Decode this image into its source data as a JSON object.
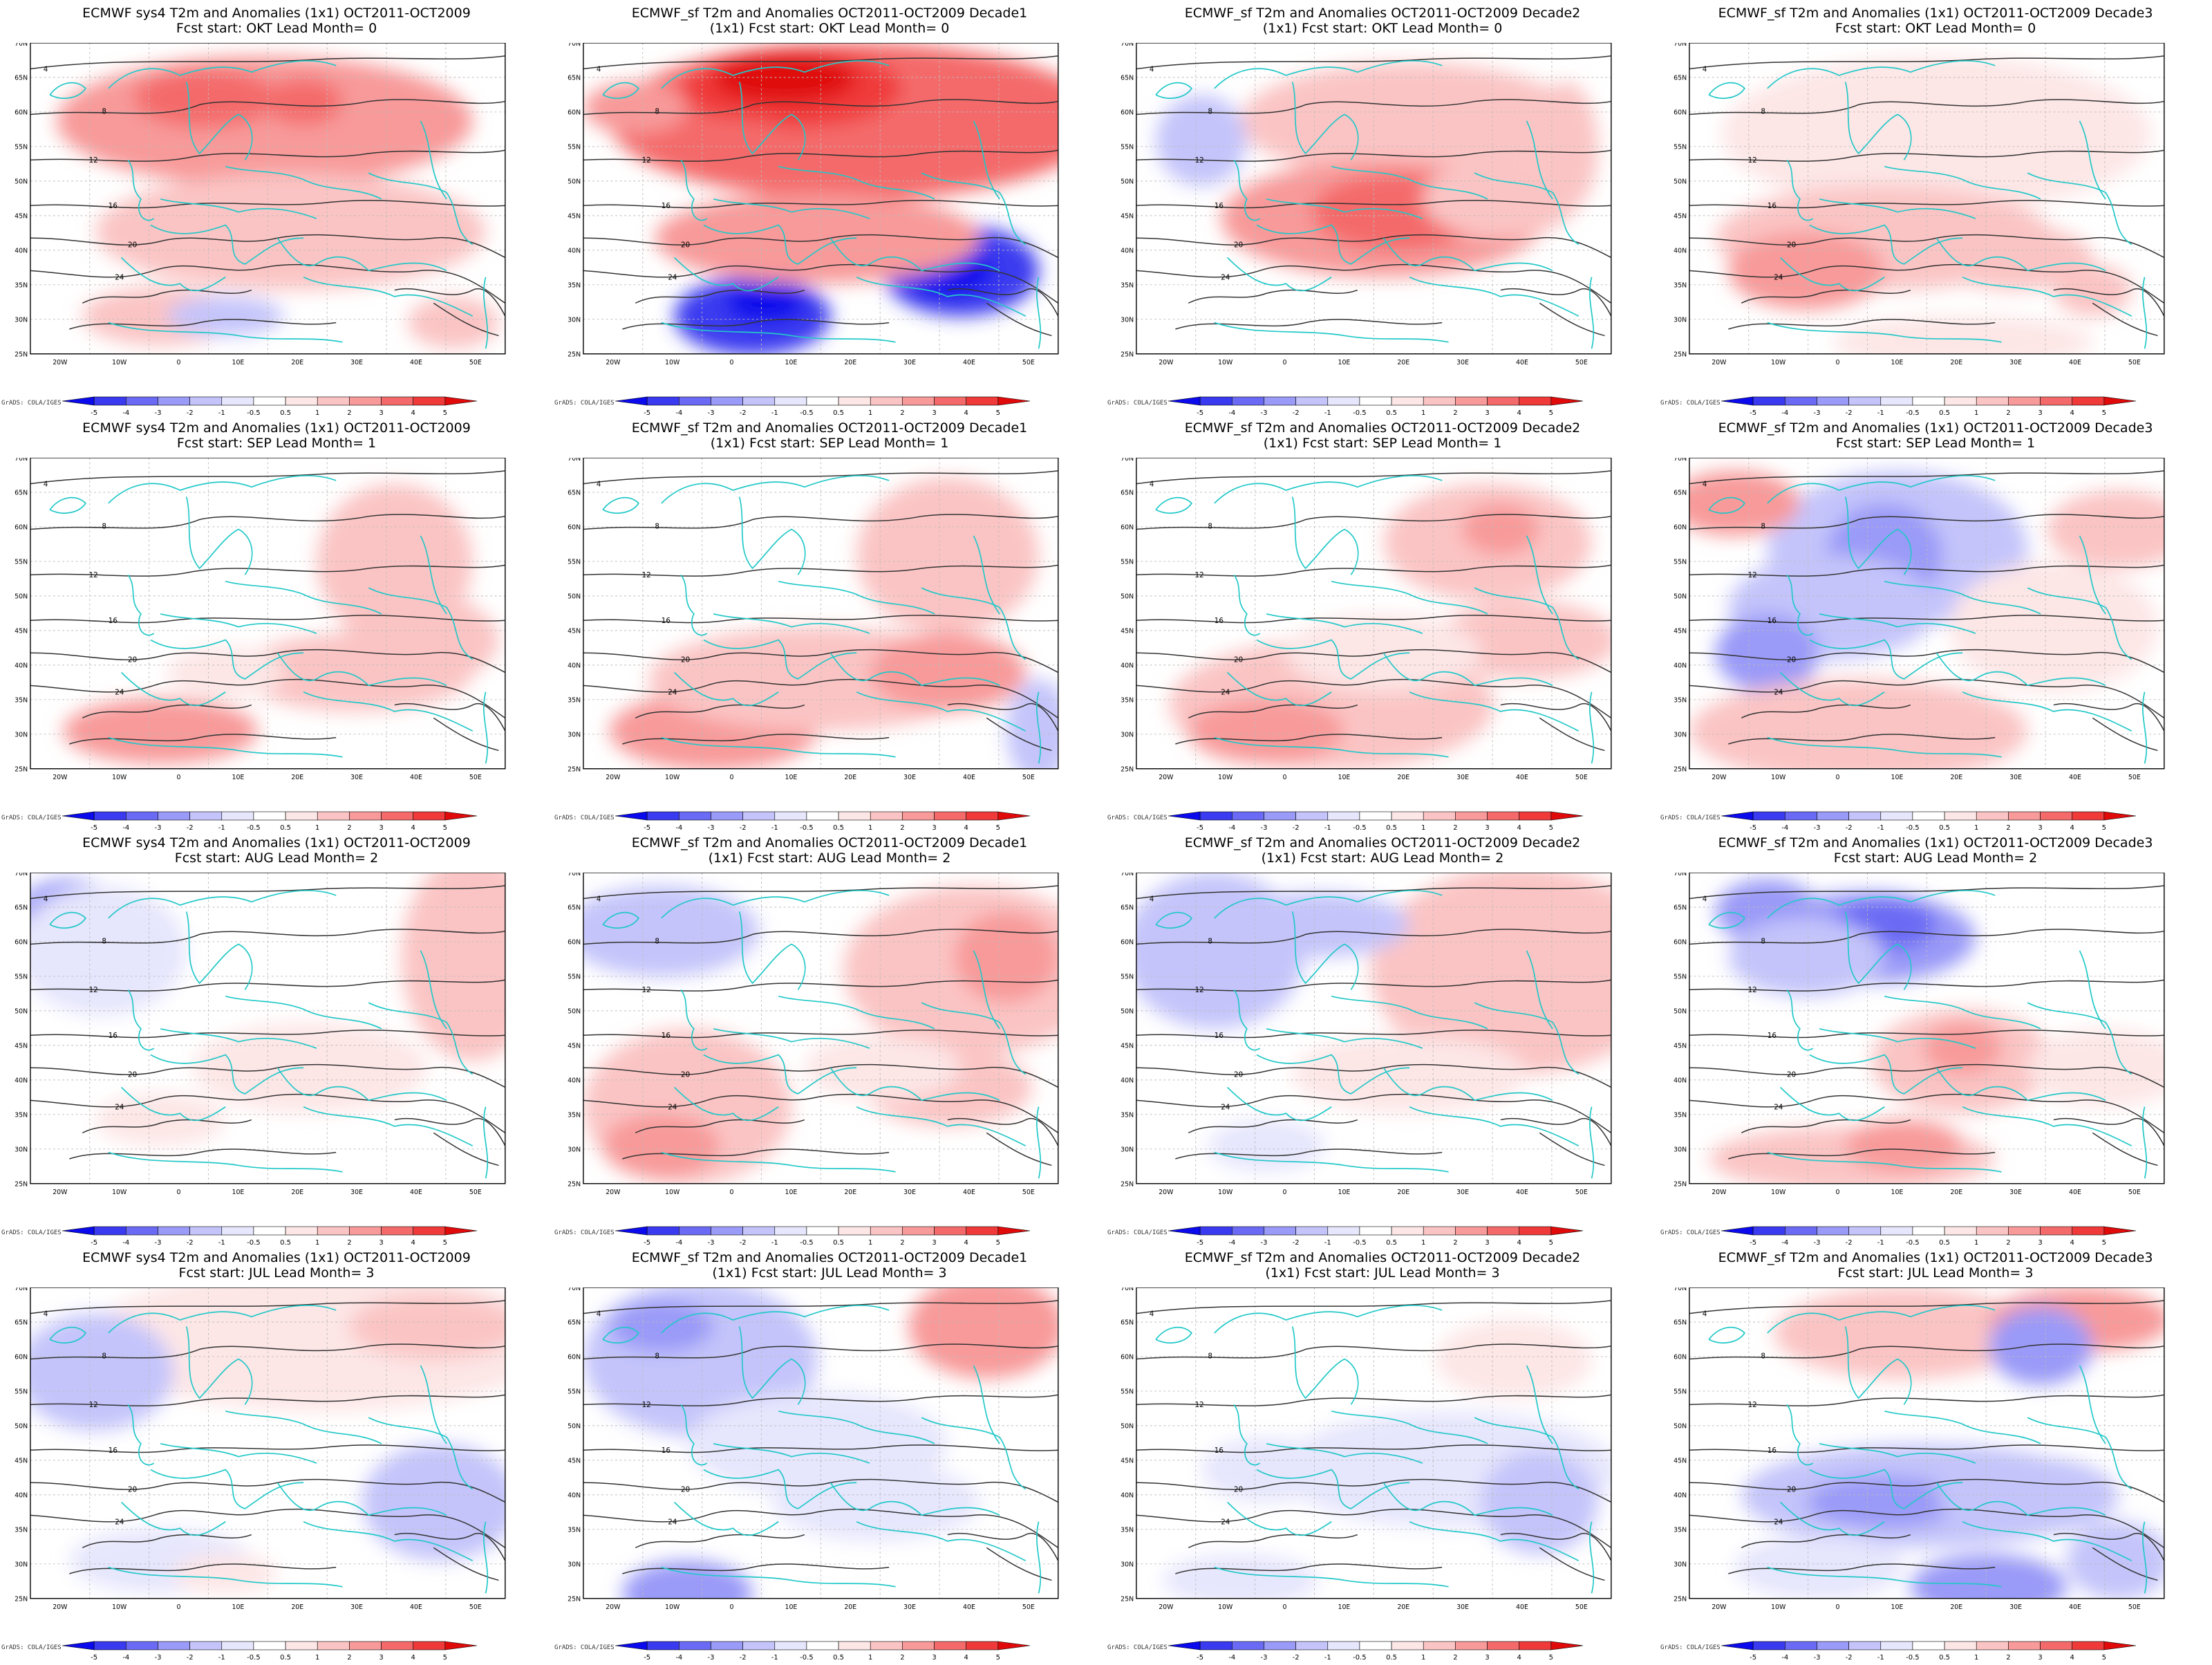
{
  "colorbar": {
    "labels": [
      "-5",
      "-4",
      "-3",
      "-2",
      "-1",
      "-0.5",
      "0.5",
      "1",
      "2",
      "3",
      "4",
      "5"
    ],
    "colors": [
      "#0a0aec",
      "#3a3af0",
      "#6a6af4",
      "#9a9af8",
      "#c4c4fb",
      "#e6e6fd",
      "#ffffff",
      "#fde6e6",
      "#fbc4c4",
      "#f89a9a",
      "#f46a6a",
      "#f03a3a",
      "#e00a0a"
    ]
  },
  "axes": {
    "lon_labels": [
      "20W",
      "10W",
      "0",
      "10E",
      "20E",
      "30E",
      "40E",
      "50E"
    ],
    "lat_labels": [
      "70N",
      "65N",
      "60N",
      "55N",
      "50N",
      "45N",
      "40N",
      "35N",
      "30N",
      "25N"
    ]
  },
  "credit": "GrADS: COLA/IGES",
  "contour_labels": [
    "4",
    "8",
    "12",
    "16",
    "20",
    "24"
  ],
  "rows": [
    {
      "lead": "OKT",
      "lead_month": "0",
      "panels": [
        {
          "t1": "ECMWF sys4 T2m and Anomalies (1x1) OCT2011-OCT2009",
          "t2": "Fcst start: OKT  Lead Month= 0"
        },
        {
          "t1": "ECMWF_sf T2m and Anomalies OCT2011-OCT2009 Decade1",
          "t2": "(1x1) Fcst start: OKT  Lead Month= 0"
        },
        {
          "t1": "ECMWF_sf T2m and Anomalies OCT2011-OCT2009 Decade2",
          "t2": "(1x1) Fcst start: OKT  Lead Month= 0"
        },
        {
          "t1": "ECMWF_sf T2m and Anomalies (1x1) OCT2011-OCT2009 Decade3",
          "t2": "Fcst start: OKT  Lead Month= 0"
        }
      ]
    },
    {
      "lead": "SEP",
      "lead_month": "1",
      "panels": [
        {
          "t1": "ECMWF sys4 T2m and Anomalies (1x1) OCT2011-OCT2009",
          "t2": "Fcst start: SEP  Lead Month= 1"
        },
        {
          "t1": "ECMWF_sf T2m and Anomalies OCT2011-OCT2009 Decade1",
          "t2": "(1x1) Fcst start: SEP  Lead Month= 1"
        },
        {
          "t1": "ECMWF_sf T2m and Anomalies OCT2011-OCT2009 Decade2",
          "t2": "(1x1) Fcst start: SEP  Lead Month= 1"
        },
        {
          "t1": "ECMWF_sf T2m and Anomalies (1x1) OCT2011-OCT2009 Decade3",
          "t2": "Fcst start: SEP  Lead Month= 1"
        }
      ]
    },
    {
      "lead": "AUG",
      "lead_month": "2",
      "panels": [
        {
          "t1": "ECMWF sys4 T2m and Anomalies (1x1) OCT2011-OCT2009",
          "t2": "Fcst start: AUG  Lead Month= 2"
        },
        {
          "t1": "ECMWF_sf T2m and Anomalies OCT2011-OCT2009 Decade1",
          "t2": "(1x1) Fcst start: AUG  Lead Month= 2"
        },
        {
          "t1": "ECMWF_sf T2m and Anomalies OCT2011-OCT2009 Decade2",
          "t2": "(1x1) Fcst start: AUG  Lead Month= 2"
        },
        {
          "t1": "ECMWF_sf T2m and Anomalies (1x1) OCT2011-OCT2009 Decade3",
          "t2": "Fcst start: AUG  Lead Month= 2"
        }
      ]
    },
    {
      "lead": "JUL",
      "lead_month": "3",
      "panels": [
        {
          "t1": "ECMWF sys4 T2m and Anomalies (1x1) OCT2011-OCT2009",
          "t2": "Fcst start: JUL  Lead Month= 3"
        },
        {
          "t1": "ECMWF_sf T2m and Anomalies OCT2011-OCT2009 Decade1",
          "t2": "(1x1) Fcst start: JUL  Lead Month= 3"
        },
        {
          "t1": "ECMWF_sf T2m and Anomalies OCT2011-OCT2009 Decade2",
          "t2": "(1x1) Fcst start: JUL  Lead Month= 3"
        },
        {
          "t1": "ECMWF_sf T2m and Anomalies (1x1) OCT2011-OCT2009 Decade3",
          "t2": "Fcst start: JUL  Lead Month= 3"
        }
      ]
    }
  ]
}
